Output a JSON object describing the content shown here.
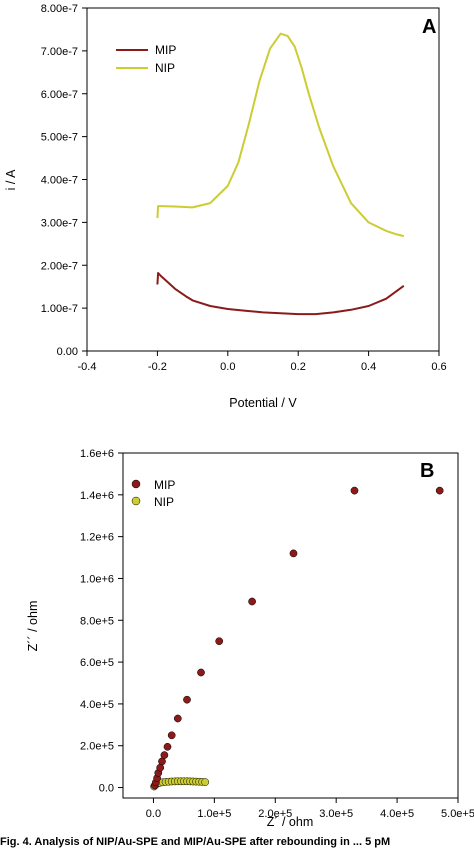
{
  "chart_data": [
    {
      "type": "line",
      "panel_label": "A",
      "title": "",
      "xlabel": "Potential / V",
      "ylabel": "i / A",
      "xlim": [
        -0.4,
        0.6
      ],
      "ylim": [
        0,
        8e-07
      ],
      "xticks": [
        -0.4,
        -0.2,
        0.0,
        0.2,
        0.4,
        0.6
      ],
      "xtick_labels": [
        "-0.4",
        "-0.2",
        "0.0",
        "0.2",
        "0.4",
        "0.6"
      ],
      "yticks": [
        0,
        1e-07,
        2e-07,
        3e-07,
        4e-07,
        5e-07,
        6e-07,
        7e-07,
        8e-07
      ],
      "ytick_labels": [
        "0.00",
        "1.00e-7",
        "2.00e-7",
        "3.00e-7",
        "4.00e-7",
        "5.00e-7",
        "6.00e-7",
        "7.00e-7",
        "8.00e-7"
      ],
      "grid": false,
      "legend": "top-left",
      "series": [
        {
          "name": "MIP",
          "color": "#8b1a1a",
          "x": [
            -0.2,
            -0.198,
            -0.19,
            -0.17,
            -0.15,
            -0.12,
            -0.1,
            -0.05,
            0.0,
            0.05,
            0.1,
            0.15,
            0.2,
            0.25,
            0.3,
            0.35,
            0.4,
            0.45,
            0.5
          ],
          "y": [
            1.55e-07,
            1.82e-07,
            1.75e-07,
            1.6e-07,
            1.45e-07,
            1.28e-07,
            1.18e-07,
            1.05e-07,
            9.8e-08,
            9.4e-08,
            9e-08,
            8.8e-08,
            8.6e-08,
            8.6e-08,
            9e-08,
            9.6e-08,
            1.05e-07,
            1.22e-07,
            1.52e-07
          ]
        },
        {
          "name": "NIP",
          "color": "#cccc33",
          "x": [
            -0.2,
            -0.198,
            -0.19,
            -0.15,
            -0.1,
            -0.05,
            0.0,
            0.03,
            0.06,
            0.09,
            0.12,
            0.15,
            0.17,
            0.19,
            0.21,
            0.23,
            0.26,
            0.3,
            0.35,
            0.4,
            0.45,
            0.48,
            0.5
          ],
          "y": [
            3.1e-07,
            3.38e-07,
            3.38e-07,
            3.37e-07,
            3.35e-07,
            3.45e-07,
            3.85e-07,
            4.4e-07,
            5.3e-07,
            6.3e-07,
            7.05e-07,
            7.4e-07,
            7.35e-07,
            7.1e-07,
            6.6e-07,
            6e-07,
            5.2e-07,
            4.3e-07,
            3.45e-07,
            3e-07,
            2.8e-07,
            2.72e-07,
            2.68e-07
          ]
        }
      ]
    },
    {
      "type": "scatter",
      "panel_label": "B",
      "title": "",
      "xlabel": "Z´ / ohm",
      "ylabel": "Z´´ / ohm",
      "xlim": [
        -50000,
        500000
      ],
      "ylim": [
        -50000,
        1600000
      ],
      "xticks": [
        0,
        100000,
        200000,
        300000,
        400000,
        500000
      ],
      "xtick_labels": [
        "0.0",
        "1.0e+5",
        "2.0e+5",
        "3.0e+5",
        "4.0e+5",
        "5.0e+5"
      ],
      "yticks": [
        0,
        200000,
        400000,
        600000,
        800000,
        1000000,
        1200000,
        1400000,
        1600000
      ],
      "ytick_labels": [
        "0.0",
        "2.0e+5",
        "4.0e+5",
        "6.0e+5",
        "8.0e+5",
        "1.0e+6",
        "1.2e+6",
        "1.4e+6",
        "1.6e+6"
      ],
      "grid": false,
      "legend": "top-left",
      "series": [
        {
          "name": "MIP",
          "color": "#8b1a1a",
          "x": [
            2000,
            4000,
            6000,
            8000,
            11000,
            14000,
            18000,
            23000,
            30000,
            40000,
            55000,
            78000,
            108000,
            162000,
            230000,
            330000,
            470000
          ],
          "y": [
            10000,
            25000,
            45000,
            70000,
            95000,
            125000,
            155000,
            195000,
            250000,
            330000,
            420000,
            550000,
            700000,
            890000,
            1120000,
            1420000,
            1420000
          ]
        },
        {
          "name": "NIP",
          "color": "#cccc33",
          "x": [
            1000,
            3000,
            6000,
            10000,
            15000,
            20000,
            25000,
            30000,
            35000,
            40000,
            45000,
            50000,
            55000,
            60000,
            65000,
            70000,
            75000,
            80000,
            85000
          ],
          "y": [
            5000,
            12000,
            18000,
            22000,
            25000,
            27000,
            28000,
            29000,
            29500,
            30000,
            30000,
            30000,
            30000,
            29500,
            29000,
            28500,
            28000,
            27000,
            26000
          ]
        }
      ]
    }
  ],
  "caption": "Fig. 4. Analysis of NIP/Au-SPE and MIP/Au-SPE after rebounding in ... 5 pM"
}
